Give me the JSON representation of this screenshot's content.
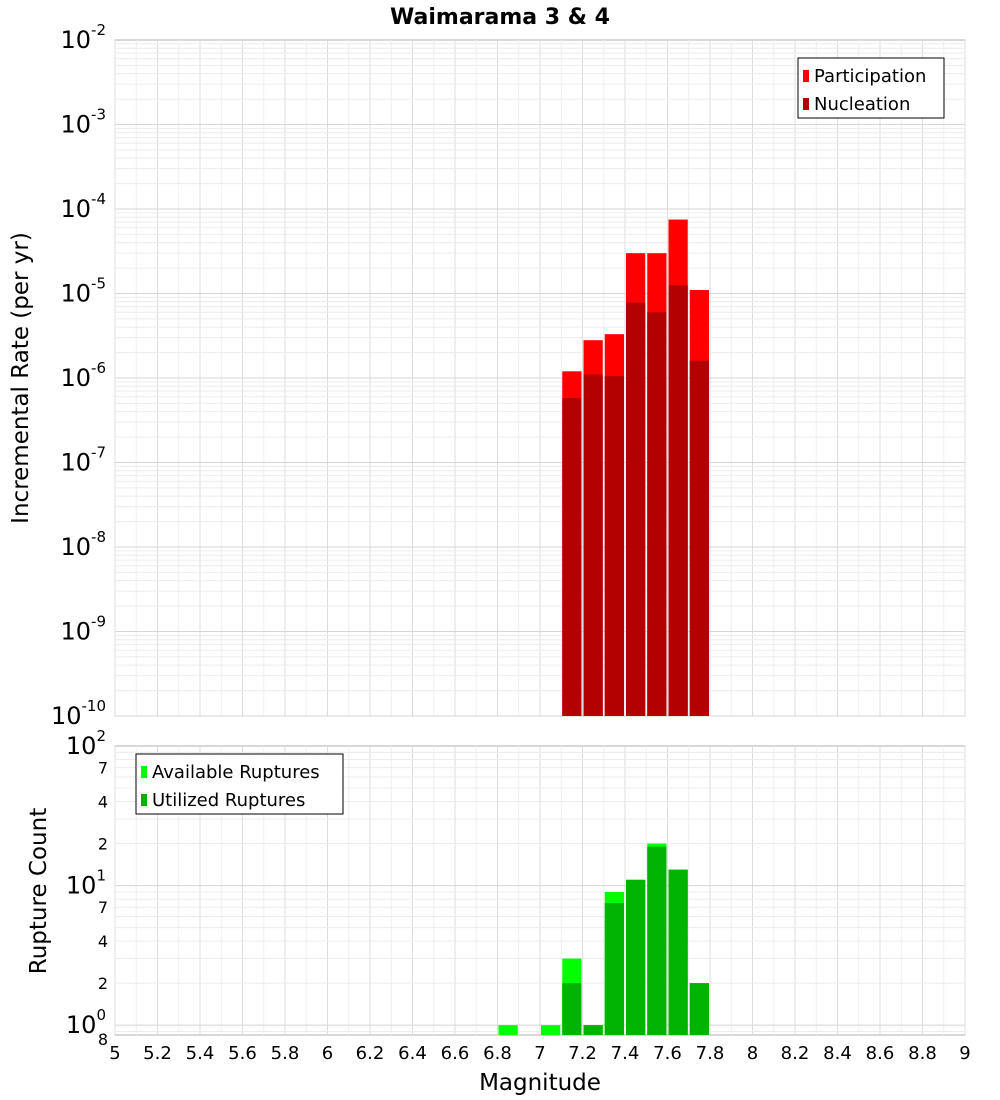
{
  "chart_data": [
    {
      "type": "bar",
      "title": "Waimarama 3 & 4",
      "xlabel": "",
      "ylabel": "Incremental Rate (per yr)",
      "yscale": "log",
      "ylim": [
        1e-10,
        0.01
      ],
      "xlim": [
        5,
        9
      ],
      "legend_position": "top-right",
      "bin_width": 0.1,
      "y_tick_labels": [
        {
          "base": "10",
          "exp": "-10",
          "value": 1e-10
        },
        {
          "base": "10",
          "exp": "-9",
          "value": 1e-09
        },
        {
          "base": "10",
          "exp": "-8",
          "value": 1e-08
        },
        {
          "base": "10",
          "exp": "-7",
          "value": 1e-07
        },
        {
          "base": "10",
          "exp": "-6",
          "value": 1e-06
        },
        {
          "base": "10",
          "exp": "-5",
          "value": 1e-05
        },
        {
          "base": "10",
          "exp": "-4",
          "value": 0.0001
        },
        {
          "base": "10",
          "exp": "-3",
          "value": 0.001
        },
        {
          "base": "10",
          "exp": "-2",
          "value": 0.01
        }
      ],
      "series": [
        {
          "name": "Participation",
          "color": "#ff0000",
          "x": [
            7.15,
            7.25,
            7.35,
            7.45,
            7.55,
            7.65,
            7.75
          ],
          "values": [
            1.2e-06,
            2.8e-06,
            3.3e-06,
            3e-05,
            3e-05,
            7.5e-05,
            1.1e-05
          ]
        },
        {
          "name": "Nucleation",
          "color": "#b30000",
          "x": [
            7.15,
            7.25,
            7.35,
            7.45,
            7.55,
            7.65,
            7.75
          ],
          "values": [
            5.8e-07,
            1.1e-06,
            1.05e-06,
            7.8e-06,
            6e-06,
            1.25e-05,
            1.6e-06
          ]
        }
      ]
    },
    {
      "type": "bar",
      "title": "",
      "xlabel": "Magnitude",
      "ylabel": "Rupture Count",
      "yscale": "log",
      "ylim": [
        0.85,
        100
      ],
      "xlim": [
        5,
        9
      ],
      "legend_position": "top-left",
      "bin_width": 0.1,
      "x_tick_labels": [
        "5",
        "5.2",
        "5.4",
        "5.6",
        "5.8",
        "6",
        "6.2",
        "6.4",
        "6.6",
        "6.8",
        "7",
        "7.2",
        "7.4",
        "7.6",
        "7.8",
        "8",
        "8.2",
        "8.4",
        "8.6",
        "8.8",
        "9"
      ],
      "y_tick_labels": [
        {
          "base": "10",
          "exp": "0",
          "value": 1
        },
        {
          "base": "10",
          "exp": "1",
          "value": 10
        },
        {
          "base": "10",
          "exp": "2",
          "value": 100
        }
      ],
      "y_minor_tick_labels": [
        {
          "label": "8",
          "value": 0.8
        },
        {
          "label": "2",
          "value": 2
        },
        {
          "label": "4",
          "value": 4
        },
        {
          "label": "7",
          "value": 7
        },
        {
          "label": "2",
          "value": 20
        },
        {
          "label": "4",
          "value": 40
        },
        {
          "label": "7",
          "value": 70
        }
      ],
      "series": [
        {
          "name": "Available Ruptures",
          "color": "#00ff00",
          "x": [
            6.85,
            7.05,
            7.15,
            7.25,
            7.35,
            7.45,
            7.55,
            7.65,
            7.75
          ],
          "values": [
            1,
            1,
            3,
            1,
            9,
            11,
            20,
            13,
            2
          ]
        },
        {
          "name": "Utilized Ruptures",
          "color": "#00b300",
          "x": [
            7.15,
            7.25,
            7.35,
            7.45,
            7.55,
            7.65,
            7.75
          ],
          "values": [
            2,
            1,
            7.5,
            11,
            19,
            13,
            2
          ]
        }
      ]
    }
  ]
}
